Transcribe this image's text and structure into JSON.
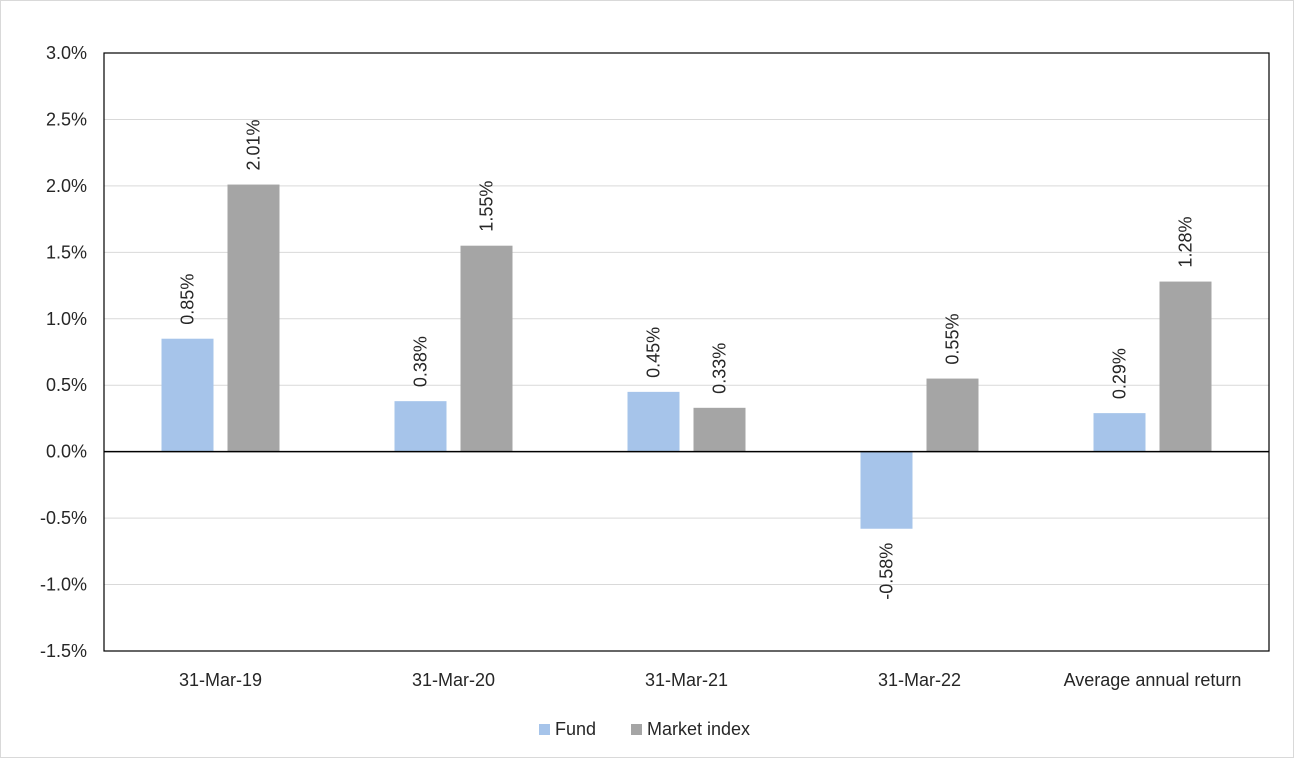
{
  "chart_data": {
    "type": "bar",
    "title": "",
    "xlabel": "",
    "ylabel": "",
    "categories": [
      "31-Mar-19",
      "31-Mar-20",
      "31-Mar-21",
      "31-Mar-22",
      "Average annual return"
    ],
    "series": [
      {
        "name": "Fund",
        "values": [
          0.85,
          0.38,
          0.45,
          -0.58,
          0.29
        ],
        "labels": [
          "0.85%",
          "0.38%",
          "0.45%",
          "-0.58%",
          "0.29%"
        ],
        "color": "#a6c4ea"
      },
      {
        "name": "Market index",
        "values": [
          2.01,
          1.55,
          0.33,
          0.55,
          1.28
        ],
        "labels": [
          "2.01%",
          "1.55%",
          "0.33%",
          "0.55%",
          "1.28%"
        ],
        "color": "#a5a5a5"
      }
    ],
    "ylim": [
      -1.5,
      3.0
    ],
    "yticks": [
      -1.5,
      -1.0,
      -0.5,
      0.0,
      0.5,
      1.0,
      1.5,
      2.0,
      2.5,
      3.0
    ],
    "ytick_labels": [
      "-1.5%",
      "-1.0%",
      "-0.5%",
      "0.0%",
      "0.5%",
      "1.0%",
      "1.5%",
      "2.0%",
      "2.5%",
      "3.0%"
    ],
    "grid": true,
    "legend_position": "bottom"
  }
}
